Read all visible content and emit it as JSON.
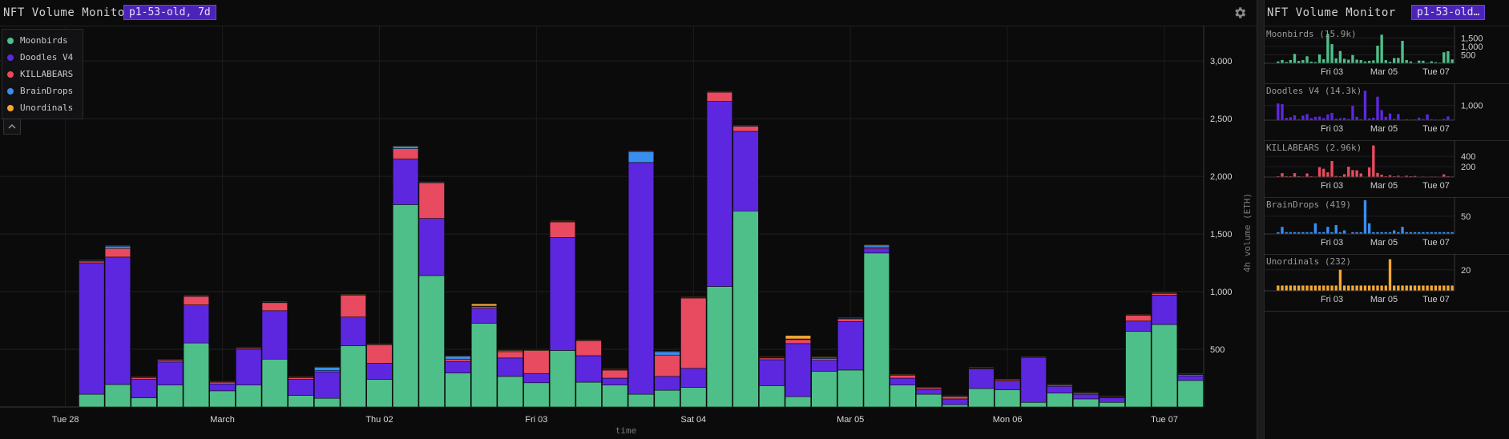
{
  "header": {
    "title": "NFT Volume Monitor",
    "badge": "p1-53-old, 7d"
  },
  "side_header": {
    "title": "NFT Volume Monitor",
    "badge": "p1-53-old…"
  },
  "icons": {
    "settings": "gear-icon",
    "collapse": "chevron-up-icon"
  },
  "colors": {
    "Moonbirds": "#4fbf89",
    "Doodles V4": "#5d27e0",
    "KILLABEARS": "#e84a5f",
    "BrainDrops": "#3a8ef0",
    "Unordinals": "#f5a733"
  },
  "chart_data": [
    {
      "type": "bar",
      "stacked": true,
      "xlabel": "time",
      "ylabel": "4h volume (ETH)",
      "ylim": [
        0,
        3300
      ],
      "yticks": [
        500,
        1000,
        1500,
        2000,
        2500,
        3000
      ],
      "ytick_labels": [
        "500",
        "1,000",
        "1,500",
        "2,000",
        "2,500",
        "3,000"
      ],
      "xtick_labels": [
        "Tue 28",
        "March",
        "Thu 02",
        "Fri 03",
        "Sat 04",
        "Mar 05",
        "Mon 06",
        "Tue 07"
      ],
      "grid": true,
      "legend_position": "top-left",
      "series": [
        {
          "name": "Moonbirds",
          "values": [
            0,
            0,
            0,
            110,
            195,
            80,
            190,
            555,
            140,
            190,
            415,
            100,
            75,
            530,
            240,
            1755,
            1140,
            295,
            725,
            265,
            210,
            490,
            215,
            190,
            110,
            145,
            170,
            1045,
            1700,
            185,
            90,
            310,
            320,
            1335,
            190,
            110,
            20,
            160,
            150,
            40,
            120,
            70,
            40,
            655,
            715,
            230
          ]
        },
        {
          "name": "Doodles V4",
          "values": [
            0,
            0,
            0,
            1140,
            1105,
            160,
            200,
            330,
            60,
            310,
            420,
            140,
            230,
            250,
            140,
            395,
            495,
            100,
            130,
            160,
            80,
            980,
            230,
            60,
            2010,
            120,
            165,
            1605,
            690,
            225,
            460,
            95,
            420,
            40,
            60,
            40,
            50,
            170,
            75,
            390,
            60,
            40,
            40,
            90,
            255,
            40
          ]
        },
        {
          "name": "KILLABEARS",
          "values": [
            0,
            0,
            0,
            15,
            75,
            15,
            15,
            75,
            15,
            10,
            70,
            15,
            10,
            190,
            160,
            90,
            310,
            20,
            15,
            55,
            200,
            135,
            130,
            70,
            0,
            185,
            610,
            80,
            45,
            15,
            35,
            15,
            25,
            10,
            25,
            15,
            20,
            5,
            10,
            0,
            10,
            10,
            5,
            50,
            15,
            10
          ]
        },
        {
          "name": "BrainDrops",
          "values": [
            0,
            0,
            0,
            5,
            20,
            5,
            5,
            5,
            5,
            5,
            5,
            5,
            30,
            5,
            5,
            20,
            5,
            25,
            5,
            10,
            0,
            5,
            5,
            5,
            95,
            30,
            5,
            5,
            5,
            5,
            5,
            10,
            5,
            20,
            5,
            5,
            5,
            5,
            5,
            5,
            5,
            5,
            5,
            5,
            5,
            5
          ]
        },
        {
          "name": "Unordinals",
          "values": [
            0,
            0,
            0,
            5,
            5,
            5,
            5,
            5,
            5,
            5,
            5,
            5,
            5,
            5,
            5,
            5,
            5,
            5,
            20,
            5,
            5,
            5,
            5,
            5,
            5,
            5,
            5,
            5,
            5,
            5,
            30,
            5,
            5,
            5,
            5,
            5,
            5,
            5,
            5,
            5,
            5,
            5,
            5,
            5,
            5,
            5
          ]
        }
      ]
    },
    {
      "type": "bar",
      "panel": "Moonbirds",
      "title": "Moonbirds (15.9k)",
      "yticks": [
        500,
        1000,
        1500
      ],
      "ytick_labels": [
        "500",
        "1,000",
        "1,500"
      ],
      "ylim": [
        0,
        2000
      ],
      "xtick_labels": [
        "Fri 03",
        "Mar 05",
        "Tue 07"
      ],
      "values": [
        0,
        0,
        0,
        110,
        195,
        80,
        190,
        555,
        140,
        190,
        415,
        100,
        75,
        530,
        240,
        1755,
        1140,
        295,
        725,
        265,
        210,
        490,
        215,
        190,
        110,
        145,
        170,
        1045,
        1700,
        185,
        90,
        310,
        320,
        1335,
        190,
        110,
        20,
        160,
        150,
        40,
        120,
        70,
        40,
        655,
        715,
        230
      ]
    },
    {
      "type": "bar",
      "panel": "Doodles V4",
      "title": "Doodles V4 (14.3k)",
      "yticks": [
        1000
      ],
      "ytick_labels": [
        "1,000"
      ],
      "ylim": [
        0,
        2300
      ],
      "xtick_labels": [
        "Fri 03",
        "Mar 05",
        "Tue 07"
      ],
      "values": [
        0,
        0,
        0,
        1140,
        1105,
        160,
        200,
        330,
        60,
        310,
        420,
        140,
        230,
        250,
        140,
        395,
        495,
        100,
        130,
        160,
        80,
        980,
        230,
        60,
        2010,
        120,
        165,
        1605,
        690,
        225,
        460,
        95,
        420,
        40,
        60,
        40,
        50,
        170,
        75,
        390,
        60,
        40,
        40,
        90,
        255,
        40
      ]
    },
    {
      "type": "bar",
      "panel": "KILLABEARS",
      "title": "KILLABEARS (2.96k)",
      "yticks": [
        200,
        400
      ],
      "ytick_labels": [
        "200",
        "400"
      ],
      "ylim": [
        0,
        650
      ],
      "xtick_labels": [
        "Fri 03",
        "Mar 05",
        "Tue 07"
      ],
      "values": [
        0,
        0,
        0,
        15,
        75,
        15,
        15,
        75,
        15,
        10,
        70,
        15,
        10,
        190,
        160,
        90,
        310,
        20,
        15,
        55,
        200,
        135,
        130,
        70,
        0,
        185,
        610,
        80,
        45,
        15,
        35,
        15,
        25,
        10,
        25,
        15,
        20,
        5,
        10,
        0,
        10,
        10,
        5,
        50,
        15,
        10
      ]
    },
    {
      "type": "bar",
      "panel": "BrainDrops",
      "title": "BrainDrops (419)",
      "yticks": [
        50
      ],
      "ytick_labels": [
        "50"
      ],
      "ylim": [
        0,
        95
      ],
      "xtick_labels": [
        "Fri 03",
        "Mar 05",
        "Tue 07"
      ],
      "values": [
        0,
        0,
        0,
        5,
        20,
        5,
        5,
        5,
        5,
        5,
        5,
        5,
        30,
        5,
        5,
        20,
        5,
        25,
        5,
        10,
        0,
        5,
        5,
        5,
        95,
        30,
        5,
        5,
        5,
        5,
        5,
        10,
        5,
        20,
        5,
        5,
        5,
        5,
        5,
        5,
        5,
        5,
        5,
        5,
        5,
        5
      ]
    },
    {
      "type": "bar",
      "panel": "Unordinals",
      "title": "Unordinals (232)",
      "yticks": [
        20
      ],
      "ytick_labels": [
        "20"
      ],
      "ylim": [
        0,
        32
      ],
      "xtick_labels": [
        "Fri 03",
        "Mar 05",
        "Tue 07"
      ],
      "values": [
        0,
        0,
        0,
        5,
        5,
        5,
        5,
        5,
        5,
        5,
        5,
        5,
        5,
        5,
        5,
        5,
        5,
        5,
        20,
        5,
        5,
        5,
        5,
        5,
        5,
        5,
        5,
        5,
        5,
        5,
        30,
        5,
        5,
        5,
        5,
        5,
        5,
        5,
        5,
        5,
        5,
        5,
        5,
        5,
        5,
        5
      ]
    }
  ]
}
